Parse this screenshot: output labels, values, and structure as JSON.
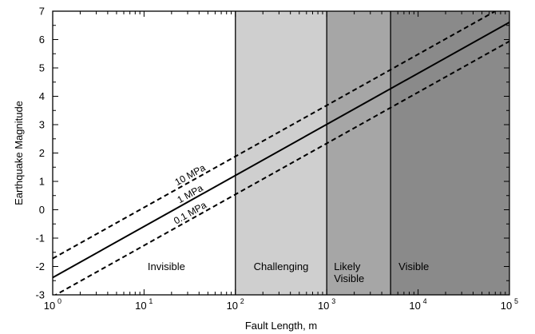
{
  "chart_data": {
    "type": "line",
    "xlabel": "Fault Length, m",
    "ylabel": "Earthquake Magnitude",
    "xscale": "log",
    "xlim": [
      1,
      100000
    ],
    "ylim": [
      -3,
      7
    ],
    "x_ticks": [
      {
        "base": "10",
        "exp": "0"
      },
      {
        "base": "10",
        "exp": "1"
      },
      {
        "base": "10",
        "exp": "2"
      },
      {
        "base": "10",
        "exp": "3"
      },
      {
        "base": "10",
        "exp": "4"
      },
      {
        "base": "10",
        "exp": "5"
      }
    ],
    "y_ticks": [
      "-3",
      "-2",
      "-1",
      "0",
      "1",
      "2",
      "3",
      "4",
      "5",
      "6",
      "7"
    ],
    "grid": false,
    "regions": [
      {
        "label_lines": [
          "Invisible"
        ],
        "x_start": 1,
        "x_end": 100,
        "color": "#ffffff"
      },
      {
        "label_lines": [
          "Challenging"
        ],
        "x_start": 100,
        "x_end": 1000,
        "color": "#cfcfcf"
      },
      {
        "label_lines": [
          "Likely",
          "Visible"
        ],
        "x_start": 1000,
        "x_end": 5000,
        "color": "#a6a6a6"
      },
      {
        "label_lines": [
          "Visible"
        ],
        "x_start": 5000,
        "x_end": 100000,
        "color": "#8a8a8a"
      }
    ],
    "series": [
      {
        "name": "10 MPa",
        "style": "dashed",
        "x": [
          1,
          100000
        ],
        "y": [
          -1.72,
          7.28
        ]
      },
      {
        "name": "1 MPa",
        "style": "solid",
        "x": [
          1,
          100000
        ],
        "y": [
          -2.39,
          6.61
        ]
      },
      {
        "name": "0.1 MPa",
        "style": "dashed",
        "x": [
          1,
          100000
        ],
        "y": [
          -3.06,
          5.94
        ]
      }
    ]
  }
}
